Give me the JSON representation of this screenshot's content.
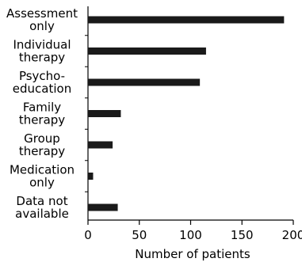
{
  "chart_data": {
    "type": "bar",
    "orientation": "horizontal",
    "categories": [
      [
        "Assessment",
        "only"
      ],
      [
        "Individual",
        "therapy"
      ],
      [
        "Psycho-",
        "education"
      ],
      [
        "Family",
        "therapy"
      ],
      [
        "Group",
        "therapy"
      ],
      [
        "Medication",
        "only"
      ],
      [
        "Data not",
        "available"
      ]
    ],
    "values": [
      191,
      115,
      109,
      32,
      24,
      5,
      29
    ],
    "title": "",
    "xlabel": "Number of patients",
    "ylabel": "",
    "xlim": [
      0,
      200
    ],
    "xticks": [
      0,
      50,
      100,
      150,
      200
    ],
    "grid": false,
    "legend": "none",
    "bar_color": "#1a1a1a"
  }
}
